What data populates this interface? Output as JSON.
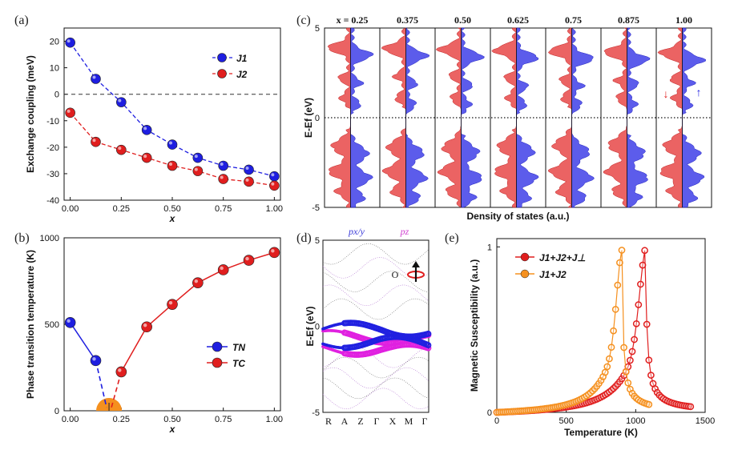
{
  "chart_data": [
    {
      "id": "a",
      "panel_label": "(a)",
      "type": "line",
      "xlabel": "x",
      "ylabel": "Exchange coupling (meV)",
      "xlim": [
        0,
        1.0
      ],
      "ylim": [
        -40,
        25
      ],
      "xticks": [
        "0.00",
        "0.25",
        "0.50",
        "0.75",
        "1.00"
      ],
      "xtick_values": [
        0,
        0.25,
        0.5,
        0.75,
        1.0
      ],
      "yticks": [
        "20",
        "10",
        "0",
        "-10",
        "-20",
        "-30",
        "-40"
      ],
      "ytick_values": [
        20,
        10,
        0,
        -10,
        -20,
        -30,
        -40
      ],
      "x": [
        0,
        0.125,
        0.25,
        0.375,
        0.5,
        0.625,
        0.75,
        0.875,
        1.0
      ],
      "series": [
        {
          "name": "J1",
          "sub": "1",
          "color": "#1e1ee0",
          "values": [
            19.5,
            5.8,
            -3.0,
            -13.5,
            -19.0,
            -24.0,
            -27.0,
            -28.5,
            -31.0
          ]
        },
        {
          "name": "J2",
          "sub": "2",
          "color": "#e01e1e",
          "values": [
            -7.0,
            -18.0,
            -21.0,
            -24.0,
            -27.0,
            -29.0,
            -32.0,
            -33.0,
            -34.5
          ]
        }
      ],
      "legend": "top-right",
      "zero_line": true
    },
    {
      "id": "b",
      "panel_label": "(b)",
      "type": "line",
      "xlabel": "x",
      "ylabel": "Phase transition temperature (K)",
      "xlim": [
        0,
        1.0
      ],
      "ylim": [
        0,
        1000
      ],
      "xticks": [
        "0.00",
        "0.25",
        "0.50",
        "0.75",
        "1.00"
      ],
      "xtick_values": [
        0,
        0.25,
        0.5,
        0.75,
        1.0
      ],
      "yticks": [
        "1000",
        "500",
        "0"
      ],
      "ytick_values": [
        1000,
        500,
        0
      ],
      "series": [
        {
          "name": "TN",
          "sub": "N",
          "color": "#1e1ee0",
          "x": [
            0,
            0.125
          ],
          "values": [
            510,
            290
          ]
        },
        {
          "name": "TC",
          "sub": "c",
          "color": "#e01e1e",
          "x": [
            0.25,
            0.375,
            0.5,
            0.625,
            0.75,
            0.875,
            1.0
          ],
          "values": [
            225,
            485,
            615,
            740,
            815,
            870,
            915
          ]
        }
      ],
      "dashed_to": 0.19,
      "legend": "bottom-right"
    },
    {
      "id": "c",
      "panel_label": "(c)",
      "type": "area",
      "xlabel": "Density of states (a.u.)",
      "ylabel": "E-Ef (eV)",
      "ylim": [
        -5,
        5
      ],
      "yticks": [
        "5",
        "0",
        "-5"
      ],
      "ytick_values": [
        5,
        0,
        -5
      ],
      "columns": [
        "x = 0.25",
        "0.375",
        "0.50",
        "0.625",
        "0.75",
        "0.875",
        "1.00"
      ],
      "arrows": [
        "↓",
        "↑"
      ],
      "up_color": "#4040e8",
      "down_color": "#e84848"
    },
    {
      "id": "d",
      "panel_label": "(d)",
      "type": "line",
      "ylabel": "E-Ef (eV)",
      "ylim": [
        -5,
        5
      ],
      "yticks": [
        "5",
        "0",
        "-5"
      ],
      "ytick_values": [
        5,
        0,
        -5
      ],
      "kpoints": [
        "R",
        "A",
        "Z",
        "Γ",
        "X",
        "M",
        "Γ"
      ],
      "legend_top": [
        "px/y",
        "pz"
      ],
      "atom_label": "O"
    },
    {
      "id": "e",
      "panel_label": "(e)",
      "type": "scatter",
      "xlabel": "Temperature (K)",
      "ylabel": "Magnetic Susceptibility (a.u.)",
      "xlim": [
        0,
        1500
      ],
      "ylim": [
        0,
        1.05
      ],
      "xticks": [
        "0",
        "500",
        "1000",
        "1500"
      ],
      "xtick_values": [
        0,
        500,
        1000,
        1500
      ],
      "yticks": [
        "1",
        "0"
      ],
      "ytick_values": [
        1,
        0
      ],
      "series": [
        {
          "name": "J1+J2+J⊥",
          "color": "#e01e1e",
          "peak": 1070,
          "tmax": 1400
        },
        {
          "name": "J1+J2",
          "color": "#f5901e",
          "peak": 900,
          "tmax": 1100
        }
      ],
      "legend": "top-left"
    }
  ]
}
